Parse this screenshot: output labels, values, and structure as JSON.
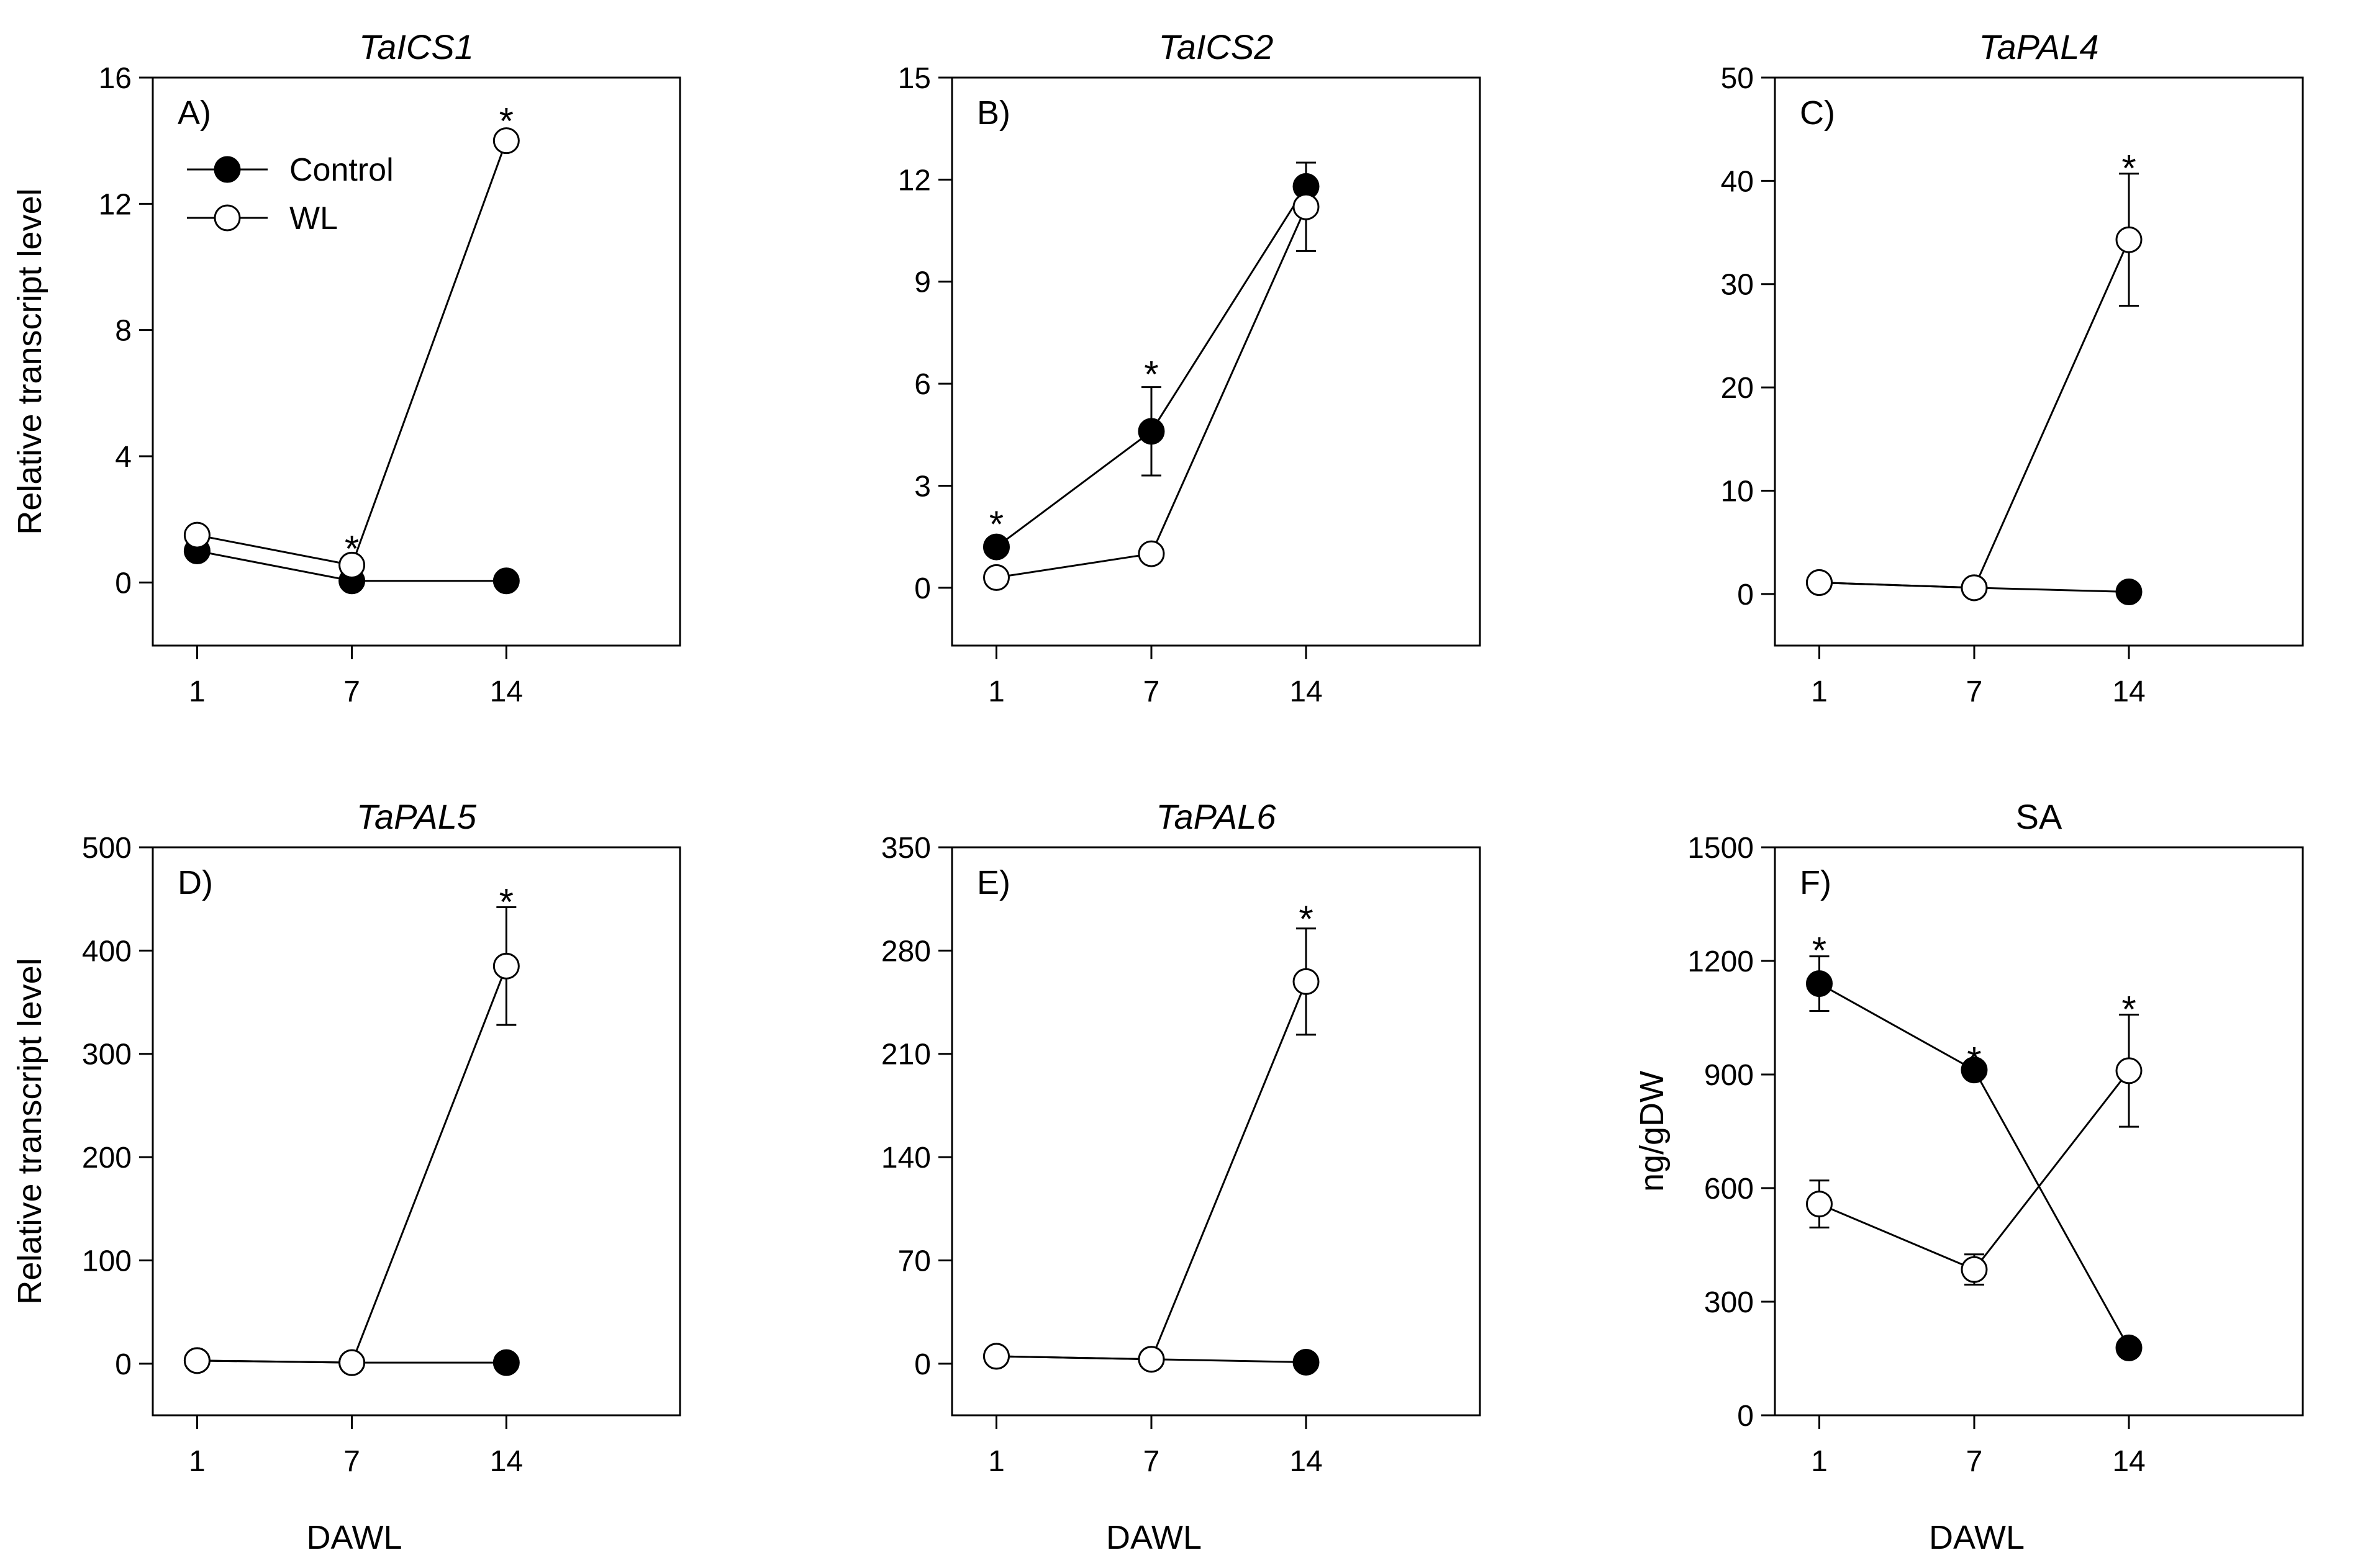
{
  "chart_data": [
    {
      "panel": "A)",
      "title": "TaICS1",
      "title_italic": true,
      "type": "line",
      "xlabel": "",
      "ylabel": "Relative transcript level",
      "x": [
        1,
        7,
        14
      ],
      "x_tick_labels": [
        "1",
        "7",
        "14"
      ],
      "ylim": [
        -2,
        16
      ],
      "y_ticks": [
        0,
        4,
        8,
        12,
        16
      ],
      "legend": {
        "position": "top-left",
        "entries": [
          "Control",
          "WL"
        ]
      },
      "series": [
        {
          "name": "Control",
          "marker": "filled",
          "values": [
            1.0,
            0.05,
            0.05
          ],
          "errors": [
            0.1,
            0.05,
            0.05
          ]
        },
        {
          "name": "WL",
          "marker": "open",
          "values": [
            1.5,
            0.55,
            14.0
          ],
          "errors": [
            0.15,
            0.1,
            0.3
          ]
        }
      ],
      "significance": [
        {
          "x": 7,
          "y": 1.1,
          "text": "*"
        },
        {
          "x": 14,
          "y": 14.65,
          "text": "*"
        }
      ]
    },
    {
      "panel": "B)",
      "title": "TaICS2",
      "title_italic": true,
      "type": "line",
      "xlabel": "",
      "ylabel": "",
      "x": [
        1,
        7,
        14
      ],
      "x_tick_labels": [
        "1",
        "7",
        "14"
      ],
      "ylim": [
        -1.7,
        15
      ],
      "y_ticks": [
        0,
        3,
        6,
        9,
        12,
        15
      ],
      "series": [
        {
          "name": "Control",
          "marker": "filled",
          "values": [
            1.2,
            4.6,
            11.8
          ],
          "errors": [
            0.1,
            1.3,
            0.7
          ]
        },
        {
          "name": "WL",
          "marker": "open",
          "values": [
            0.3,
            1.0,
            11.2
          ],
          "errors": [
            0.1,
            0.1,
            1.3
          ]
        }
      ],
      "significance": [
        {
          "x": 1,
          "y": 1.9,
          "text": "*"
        },
        {
          "x": 7,
          "y": 6.3,
          "text": "*"
        }
      ]
    },
    {
      "panel": "C)",
      "title": "TaPAL4",
      "title_italic": true,
      "type": "line",
      "xlabel": "",
      "ylabel": "",
      "x": [
        1,
        7,
        14
      ],
      "x_tick_labels": [
        "1",
        "7",
        "14"
      ],
      "ylim": [
        -5,
        50
      ],
      "y_ticks": [
        0,
        10,
        20,
        30,
        40,
        50
      ],
      "series": [
        {
          "name": "Control",
          "marker": "filled",
          "values": [
            1.1,
            0.6,
            0.2
          ],
          "errors": [
            0.1,
            0.1,
            0.1
          ]
        },
        {
          "name": "WL",
          "marker": "open",
          "values": [
            1.1,
            0.6,
            34.3
          ],
          "errors": [
            0.1,
            0.1,
            6.4
          ]
        }
      ],
      "significance": [
        {
          "x": 14,
          "y": 41.3,
          "text": "*"
        }
      ]
    },
    {
      "panel": "D)",
      "title": "TaPAL5",
      "title_italic": true,
      "type": "line",
      "xlabel": "DAWL",
      "ylabel": "Relative transcript level",
      "x": [
        1,
        7,
        14
      ],
      "x_tick_labels": [
        "1",
        "7",
        "14"
      ],
      "ylim": [
        -50,
        500
      ],
      "y_ticks": [
        0,
        100,
        200,
        300,
        400,
        500
      ],
      "series": [
        {
          "name": "Control",
          "marker": "filled",
          "values": [
            3,
            1,
            1
          ],
          "errors": [
            1,
            1,
            1
          ]
        },
        {
          "name": "WL",
          "marker": "open",
          "values": [
            3,
            1,
            385
          ],
          "errors": [
            1,
            1,
            57
          ]
        }
      ],
      "significance": [
        {
          "x": 14,
          "y": 448,
          "text": "*"
        }
      ]
    },
    {
      "panel": "E)",
      "title": "TaPAL6",
      "title_italic": true,
      "type": "line",
      "xlabel": "DAWL",
      "ylabel": "",
      "x": [
        1,
        7,
        14
      ],
      "x_tick_labels": [
        "1",
        "7",
        "14"
      ],
      "ylim": [
        -35,
        350
      ],
      "y_ticks": [
        0,
        70,
        140,
        210,
        280,
        350
      ],
      "series": [
        {
          "name": "Control",
          "marker": "filled",
          "values": [
            5,
            3,
            1
          ],
          "errors": [
            1,
            1,
            1
          ]
        },
        {
          "name": "WL",
          "marker": "open",
          "values": [
            5,
            3,
            259
          ],
          "errors": [
            1,
            1,
            36
          ]
        }
      ],
      "significance": [
        {
          "x": 14,
          "y": 302,
          "text": "*"
        }
      ]
    },
    {
      "panel": "F)",
      "title": "SA",
      "title_italic": false,
      "type": "line",
      "xlabel": "DAWL",
      "ylabel": "ng/gDW",
      "x": [
        1,
        7,
        14
      ],
      "x_tick_labels": [
        "1",
        "7",
        "14"
      ],
      "ylim": [
        0,
        1500
      ],
      "y_ticks": [
        0,
        300,
        600,
        900,
        1200,
        1500
      ],
      "series": [
        {
          "name": "Control",
          "marker": "filled",
          "values": [
            1140,
            912,
            178
          ],
          "errors": [
            72,
            12,
            12
          ]
        },
        {
          "name": "WL",
          "marker": "open",
          "values": [
            558,
            385,
            910
          ],
          "errors": [
            62,
            40,
            148
          ]
        }
      ],
      "significance": [
        {
          "x": 1,
          "y": 1230,
          "text": "*"
        },
        {
          "x": 7,
          "y": 940,
          "text": "*"
        },
        {
          "x": 14,
          "y": 1075,
          "text": "*"
        }
      ]
    }
  ]
}
